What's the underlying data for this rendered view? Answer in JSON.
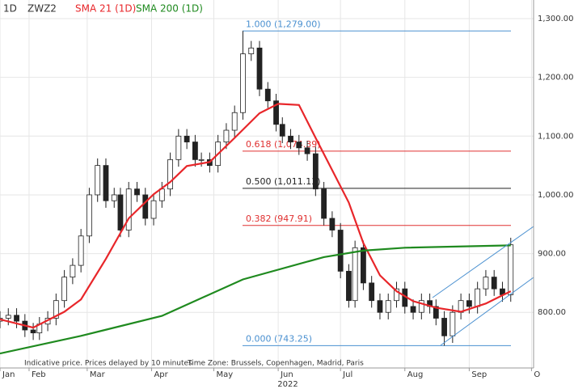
{
  "chart_data": {
    "type": "candlestick",
    "interval": "1D",
    "instrument": "ZWZ2",
    "x": [
      17,
      21,
      25,
      29,
      33,
      36,
      40,
      44,
      48,
      52,
      56,
      60,
      64,
      68,
      72,
      75,
      79,
      83,
      87,
      91,
      95,
      99,
      103,
      107,
      111,
      114,
      118,
      122,
      126,
      130,
      134,
      138,
      142,
      146,
      150,
      153,
      157,
      161,
      165,
      169,
      173,
      177,
      181,
      185,
      188,
      192,
      196,
      200,
      204,
      208,
      212,
      216,
      220,
      224,
      227,
      231,
      235,
      239,
      243,
      247,
      251,
      255,
      259,
      263
    ],
    "open": [
      785,
      790,
      795,
      785,
      770,
      765,
      780,
      790,
      820,
      860,
      880,
      930,
      1000,
      1050,
      990,
      1000,
      940,
      1010,
      1000,
      960,
      990,
      1010,
      1060,
      1100,
      1090,
      1060,
      1060,
      1050,
      1090,
      1110,
      1140,
      1240,
      1250,
      1180,
      1160,
      1120,
      1100,
      1090,
      1080,
      1070,
      1010,
      960,
      940,
      870,
      820,
      910,
      850,
      820,
      800,
      820,
      840,
      810,
      800,
      820,
      810,
      790,
      760,
      800,
      820,
      810,
      840,
      860,
      840,
      830
    ],
    "high": [
      802,
      807,
      807,
      797,
      782,
      792,
      802,
      832,
      872,
      892,
      942,
      1012,
      1062,
      1062,
      1012,
      1012,
      1022,
      1022,
      1012,
      1002,
      1022,
      1072,
      1112,
      1112,
      1102,
      1072,
      1072,
      1102,
      1122,
      1152,
      1279,
      1262,
      1262,
      1192,
      1172,
      1132,
      1112,
      1102,
      1092,
      1082,
      1022,
      972,
      952,
      882,
      922,
      922,
      862,
      832,
      832,
      852,
      852,
      822,
      832,
      832,
      822,
      802,
      812,
      832,
      832,
      852,
      872,
      872,
      852,
      927
    ],
    "low": [
      773,
      778,
      773,
      758,
      753,
      753,
      768,
      778,
      808,
      848,
      868,
      918,
      988,
      978,
      978,
      928,
      928,
      988,
      948,
      948,
      978,
      998,
      1048,
      1078,
      1048,
      1048,
      1038,
      1038,
      1078,
      1098,
      1128,
      1228,
      1168,
      1148,
      1108,
      1088,
      1078,
      1068,
      1058,
      998,
      948,
      928,
      858,
      808,
      808,
      838,
      808,
      788,
      788,
      808,
      798,
      788,
      788,
      798,
      778,
      743.25,
      748,
      788,
      798,
      798,
      828,
      828,
      818,
      818
    ],
    "close": [
      790,
      795,
      785,
      770,
      765,
      780,
      790,
      820,
      860,
      880,
      930,
      1000,
      1050,
      990,
      1000,
      940,
      1010,
      1000,
      960,
      990,
      1010,
      1060,
      1100,
      1090,
      1060,
      1060,
      1050,
      1090,
      1110,
      1140,
      1240,
      1250,
      1180,
      1160,
      1120,
      1100,
      1090,
      1080,
      1070,
      1010,
      960,
      940,
      870,
      820,
      910,
      850,
      820,
      800,
      820,
      840,
      810,
      800,
      820,
      810,
      790,
      760,
      800,
      820,
      810,
      840,
      860,
      840,
      830,
      915
    ],
    "series": [
      {
        "name": "SMA 21 (1D)",
        "color": "#e8262a",
        "x": [
          17,
          33,
          48,
          56,
          68,
          79,
          91,
          99,
          107,
          118,
          130,
          142,
          151,
          161,
          169,
          177,
          185,
          192,
          200,
          208,
          216,
          227,
          239,
          251,
          259,
          263
        ],
        "values": [
          788,
          774,
          801,
          822,
          891,
          960,
          1001,
          1022,
          1049,
          1056,
          1097,
          1139,
          1155,
          1153,
          1097,
          1042,
          987,
          918,
          863,
          836,
          819,
          808,
          801,
          815,
          829,
          836
        ]
      },
      {
        "name": "SMA 200 (1D)",
        "color": "#1f8a1f",
        "x": [
          17,
          56,
          95,
          134,
          173,
          192,
          212,
          263
        ],
        "values": [
          730,
          760,
          794,
          856,
          894,
          905,
          910,
          914
        ]
      }
    ],
    "fib_levels": [
      {
        "label": "1.000 (1,279.00)",
        "value": 1279,
        "color": "#4a90d0"
      },
      {
        "label": "0.618 (1,074.39)",
        "value": 1074.39,
        "color": "#e03030"
      },
      {
        "label": "0.500 (1,011.13)",
        "value": 1011.13,
        "color": "#222222"
      },
      {
        "label": "0.382 (947.91)",
        "value": 947.91,
        "color": "#e03030"
      },
      {
        "label": "0.000 (743.25)",
        "value": 743.25,
        "color": "#4a90d0"
      }
    ],
    "xlim": [
      17,
      274
    ],
    "xticks": [
      {
        "value": 17,
        "label": "Jan"
      },
      {
        "value": 31,
        "label": "Feb"
      },
      {
        "value": 59,
        "label": "Mar"
      },
      {
        "value": 90,
        "label": "Apr"
      },
      {
        "value": 120,
        "label": "May"
      },
      {
        "value": 151,
        "label": "Jun"
      },
      {
        "value": 181,
        "label": "Jul"
      },
      {
        "value": 212,
        "label": "Aug"
      },
      {
        "value": 243,
        "label": "Sep"
      },
      {
        "value": 273,
        "label": "O"
      }
    ],
    "year": "2022",
    "ylim": [
      705.3,
      1331.7
    ],
    "yticks": [
      {
        "value": 800,
        "label": "800.00"
      },
      {
        "value": 900,
        "label": "900.00"
      },
      {
        "value": 1000,
        "label": "1,000.00"
      },
      {
        "value": 1100,
        "label": "1,100.00"
      },
      {
        "value": 1200,
        "label": "1,200.00"
      },
      {
        "value": 1300,
        "label": "1,300.00"
      }
    ],
    "grid": true,
    "notes": [
      "Indicative price. Prices delayed by 10 minutes",
      "Time Zone: Brussels, Copenhagen, Madrid, Paris"
    ]
  }
}
